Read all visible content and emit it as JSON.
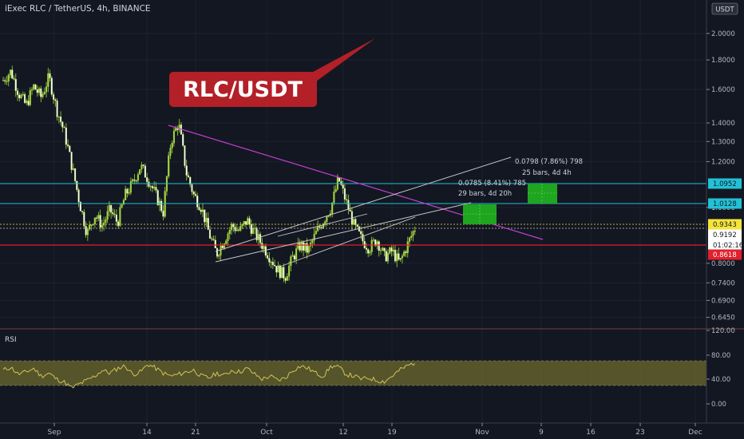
{
  "header": {
    "title": "iExec RLC / TetherUS, 4h, BINANCE",
    "currency": "USDT"
  },
  "annotation": {
    "banner": "RLC/USDT",
    "measure_1_line1": "0.0785 (8.41%) 785",
    "measure_1_line2": "29 bars,  4d 20h",
    "measure_2_line1": "0.0798 (7.86%) 798",
    "measure_2_line2": "25 bars,  4d 4h"
  },
  "indicator": {
    "name": "RSI"
  },
  "colors": {
    "background": "#131722",
    "candle": "#a5d63f",
    "resistance_line": "#22c1d6",
    "support_line": "#e0202d",
    "trendline": "#c43fd1",
    "channel": "#c8c8c8",
    "target_box": "#1fa51f",
    "banner": "#b32028",
    "rsi_line": "#cfc35a",
    "rsi_band": "#6e6a2d"
  },
  "chart_data": {
    "type": "candlestick",
    "title": "iExec RLC / TetherUS, 4h, BINANCE",
    "x_ticks": [
      "Sep",
      "14",
      "21",
      "Oct",
      "12",
      "19",
      "Nov",
      "9",
      "16",
      "23",
      "Dec"
    ],
    "y_ticks": [
      "2.0000",
      "1.8000",
      "1.6000",
      "1.4000",
      "1.3000",
      "1.2000",
      "1.0000",
      "0.8000",
      "0.7400",
      "0.6900",
      "0.6450"
    ],
    "y_scale": "log",
    "y_range": [
      0.62,
      2.2
    ],
    "price_lines": [
      {
        "label": "1.0952",
        "value": 1.0952,
        "role": "resistance"
      },
      {
        "label": "1.0128",
        "value": 1.0128,
        "role": "resistance"
      },
      {
        "label": "0.9343",
        "value": 0.9343,
        "role": "level"
      },
      {
        "label": "0.9192",
        "value": 0.9192,
        "role": "current"
      },
      {
        "label": "01:02:16",
        "value": 0.895,
        "role": "countdown"
      },
      {
        "label": "0.8618",
        "value": 0.8618,
        "role": "support"
      }
    ],
    "price_path": [
      1.66,
      1.72,
      1.58,
      1.5,
      1.62,
      1.55,
      1.68,
      1.48,
      1.35,
      1.18,
      1.02,
      0.9,
      0.97,
      0.93,
      0.99,
      0.94,
      1.05,
      1.1,
      1.18,
      1.12,
      1.05,
      0.98,
      1.3,
      1.4,
      1.15,
      1.05,
      1.0,
      0.9,
      0.83,
      0.88,
      0.93,
      0.91,
      0.95,
      0.9,
      0.86,
      0.82,
      0.78,
      0.76,
      0.82,
      0.86,
      0.84,
      0.9,
      0.95,
      1.0,
      1.12,
      1.02,
      0.93,
      0.88,
      0.85,
      0.88,
      0.82,
      0.84,
      0.8,
      0.86,
      0.92
    ],
    "rsi": {
      "name": "RSI",
      "y_ticks": [
        "120.00",
        "80.00",
        "40.00",
        "0.00"
      ],
      "y_range": [
        -20,
        130
      ],
      "band": [
        30,
        70
      ],
      "values": [
        55,
        60,
        48,
        52,
        58,
        45,
        50,
        40,
        35,
        25,
        32,
        38,
        45,
        55,
        50,
        58,
        62,
        48,
        52,
        65,
        58,
        50,
        45,
        48,
        52,
        55,
        45,
        42,
        50,
        46,
        55,
        52,
        58,
        48,
        40,
        45,
        38,
        42,
        55,
        62,
        58,
        50,
        45,
        62,
        60,
        48,
        45,
        40,
        42,
        38,
        36,
        45,
        55,
        62,
        68
      ]
    }
  }
}
